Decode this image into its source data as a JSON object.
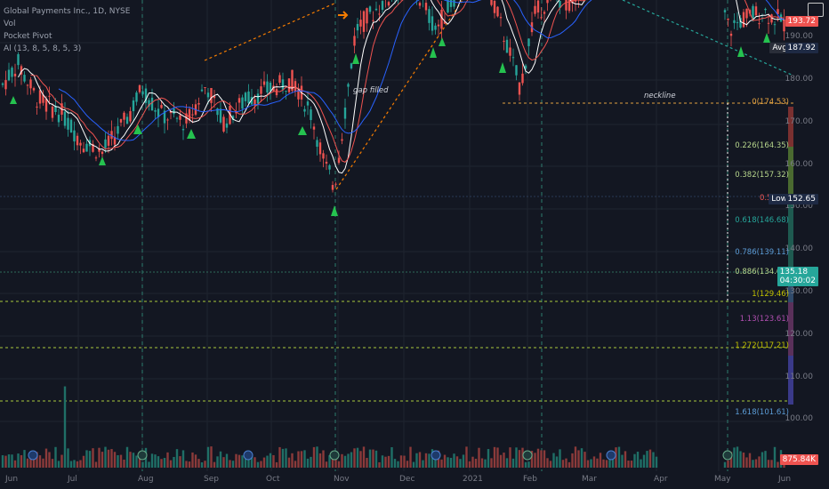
{
  "legend": {
    "title": "Global Payments Inc., 1D, NYSE",
    "line2": "Vol",
    "line3": "Pocket Pivot",
    "line4": "Al   (13, 8, 5, 8, 5, 3)"
  },
  "annotations": {
    "gap": "gap filled",
    "neckline": "neckline"
  },
  "badges": {
    "price_red": "193.72",
    "avg_label": "Avg",
    "avg_value": "187.92",
    "low_label": "Low",
    "low_value": "152.65",
    "last_price": "135.18",
    "countdown": "04:30:02",
    "volume": "875.84K"
  },
  "fib_levels": [
    {
      "label": "0(174.53)",
      "price": 174.53,
      "color": "#e0a040"
    },
    {
      "label": "0.226(164.35)",
      "price": 164.35,
      "color": "#b5d48b"
    },
    {
      "label": "0.382(157.32)",
      "price": 157.32,
      "color": "#b5d48b"
    },
    {
      "label": "0.5(152",
      "price": 152.0,
      "color": "#f05a5a"
    },
    {
      "label": "0.618(146.68)",
      "price": 146.68,
      "color": "#26a69a"
    },
    {
      "label": "0.786(139.11)",
      "price": 139.11,
      "color": "#5b9bd5"
    },
    {
      "label": "0.886(134.60)",
      "price": 134.6,
      "color": "#b5d48b"
    },
    {
      "label": "1(129.46)",
      "price": 129.46,
      "color": "#c0c000"
    },
    {
      "label": "1.13(123.61)",
      "price": 123.61,
      "color": "#b04fb0"
    },
    {
      "label": "1.272(117.21)",
      "price": 117.21,
      "color": "#c0c000"
    },
    {
      "label": "1.618(101.61)",
      "price": 101.61,
      "color": "#5b9bd5"
    }
  ],
  "y_ticks": [
    "190.00",
    "180.00",
    "170.00",
    "160.00",
    "150.00",
    "140.00",
    "130.00",
    "120.00",
    "110.00",
    "100.00"
  ],
  "x_ticks": [
    "Jun",
    "Jul",
    "Aug",
    "Sep",
    "Oct",
    "Nov",
    "Dec",
    "2021",
    "Feb",
    "Mar",
    "Apr",
    "May",
    "Jun"
  ],
  "colors": {
    "bg": "#131722",
    "up": "#26a69a",
    "down": "#ef5350",
    "accent_orange": "#f57c00"
  },
  "icons": [
    "camera-icon",
    "pivot-triangle-icon",
    "earnings-marker-icon",
    "dividend-marker-icon",
    "arrow-right-icon"
  ]
}
